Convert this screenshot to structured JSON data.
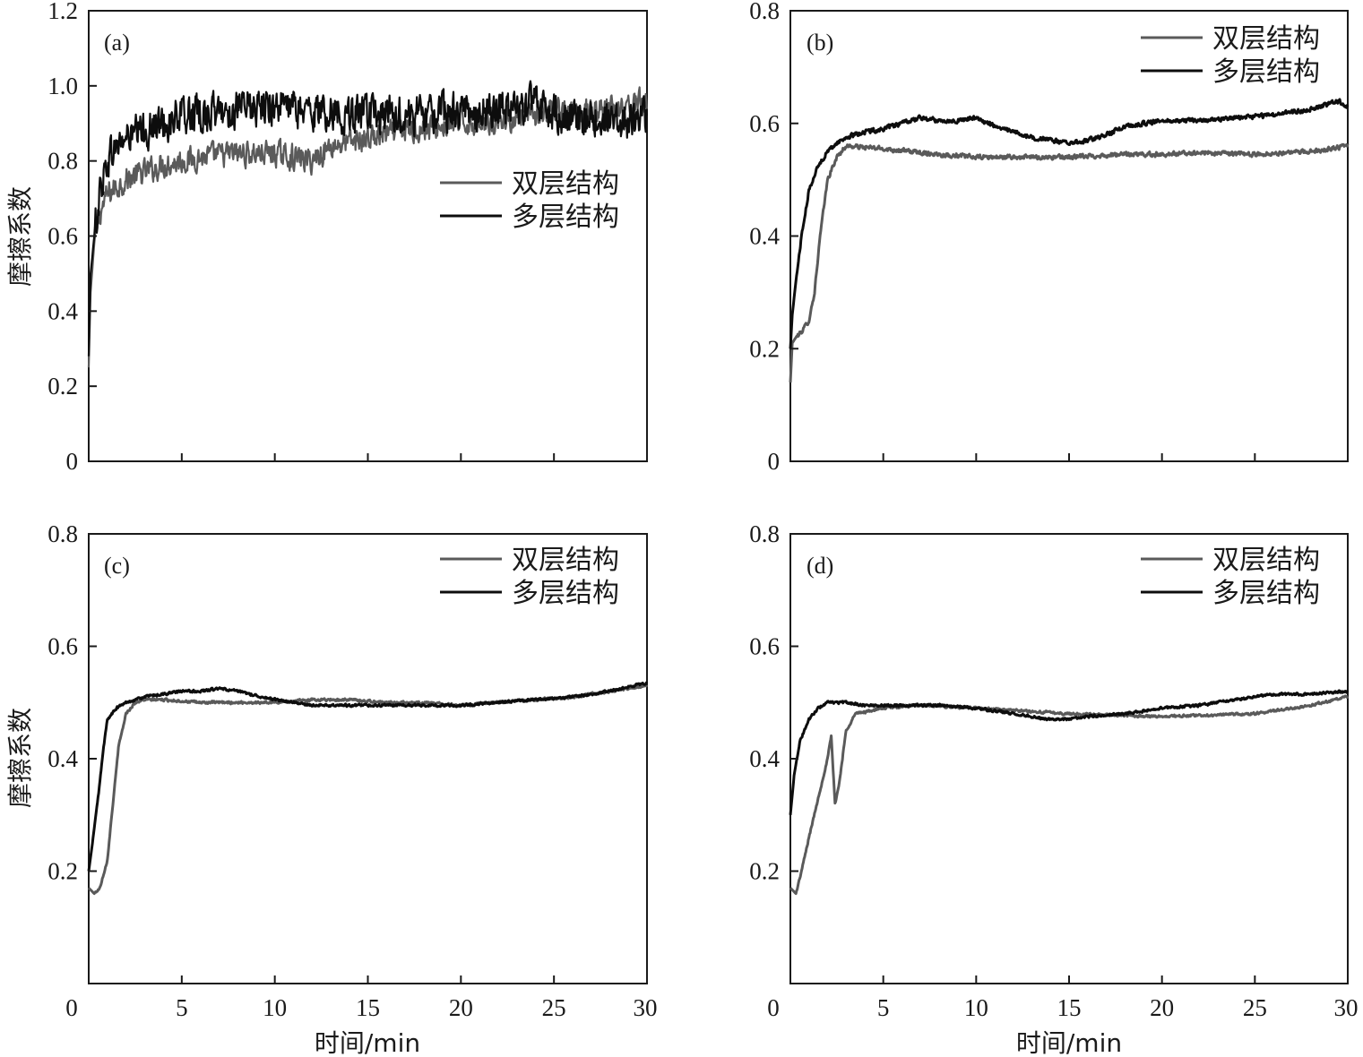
{
  "colors": {
    "双层结构": "#5a5a5a",
    "多层结构": "#0d0d0d",
    "axis": "#1a1a1a"
  },
  "chart_data": [
    {
      "type": "line",
      "panel_label": "(a)",
      "xlabel": "",
      "ylabel": "摩擦系数",
      "xlim": [
        0,
        30
      ],
      "ylim": [
        0,
        1.2
      ],
      "xticks": [
        5,
        10,
        15,
        20,
        25
      ],
      "xtick_labels": [],
      "yticks": [
        0,
        0.2,
        0.4,
        0.6,
        0.8,
        1.0,
        1.2
      ],
      "ytick_labels": [
        "0",
        "0.2",
        "0.4",
        "0.6",
        "0.8",
        "1.0",
        "1.2"
      ],
      "legend_position": "middle-right",
      "noise": {
        "双层结构": 0.03,
        "多层结构": 0.045
      },
      "series": [
        {
          "name": "双层结构",
          "x": [
            0,
            0.1,
            0.3,
            0.6,
            1,
            1.5,
            2,
            3,
            4,
            5,
            6,
            8,
            10,
            12,
            13,
            15,
            17,
            19,
            20,
            22,
            24,
            25,
            26,
            28,
            30
          ],
          "y": [
            0.25,
            0.45,
            0.58,
            0.66,
            0.71,
            0.73,
            0.75,
            0.77,
            0.79,
            0.8,
            0.81,
            0.82,
            0.82,
            0.8,
            0.84,
            0.86,
            0.88,
            0.89,
            0.9,
            0.91,
            0.92,
            0.93,
            0.93,
            0.94,
            0.96
          ]
        },
        {
          "name": "多层结构",
          "x": [
            0,
            0.1,
            0.3,
            0.6,
            1,
            1.5,
            2,
            3,
            4,
            5,
            7,
            9,
            10,
            12,
            13,
            15,
            17,
            19,
            20,
            22,
            24,
            25,
            26,
            28,
            30
          ],
          "y": [
            0.28,
            0.5,
            0.6,
            0.72,
            0.8,
            0.84,
            0.86,
            0.88,
            0.9,
            0.92,
            0.93,
            0.94,
            0.95,
            0.93,
            0.93,
            0.92,
            0.92,
            0.93,
            0.93,
            0.94,
            0.95,
            0.93,
            0.92,
            0.91,
            0.91
          ]
        }
      ]
    },
    {
      "type": "line",
      "panel_label": "(b)",
      "xlabel": "",
      "ylabel": "",
      "xlim": [
        0,
        30
      ],
      "ylim": [
        0,
        0.8
      ],
      "xticks": [
        5,
        10,
        15,
        20,
        25
      ],
      "xtick_labels": [],
      "yticks": [
        0,
        0.2,
        0.4,
        0.6,
        0.8
      ],
      "ytick_labels": [
        "0",
        "0.2",
        "0.4",
        "0.6",
        "0.8"
      ],
      "legend_position": "top-right",
      "noise": {
        "双层结构": 0.0035,
        "多层结构": 0.0035
      },
      "series": [
        {
          "name": "双层结构",
          "x": [
            0,
            0.1,
            0.3,
            0.6,
            1,
            1.3,
            1.6,
            2,
            2.5,
            3,
            5,
            8,
            10,
            12,
            15,
            18,
            20,
            22,
            25,
            28,
            30
          ],
          "y": [
            0.14,
            0.21,
            0.22,
            0.23,
            0.25,
            0.3,
            0.4,
            0.5,
            0.54,
            0.56,
            0.555,
            0.545,
            0.54,
            0.54,
            0.54,
            0.545,
            0.545,
            0.548,
            0.545,
            0.55,
            0.56
          ]
        },
        {
          "name": "多层结构",
          "x": [
            0,
            0.1,
            0.3,
            0.6,
            1,
            1.3,
            1.6,
            2,
            2.5,
            3,
            4,
            5,
            6,
            7,
            8,
            9,
            10,
            11,
            12,
            13,
            14,
            15,
            16,
            17,
            18,
            19,
            20,
            22,
            24,
            26,
            28,
            29.5,
            30
          ],
          "y": [
            0.2,
            0.26,
            0.32,
            0.4,
            0.48,
            0.51,
            0.53,
            0.55,
            0.565,
            0.575,
            0.585,
            0.59,
            0.6,
            0.61,
            0.605,
            0.605,
            0.61,
            0.595,
            0.585,
            0.575,
            0.57,
            0.565,
            0.57,
            0.58,
            0.595,
            0.6,
            0.605,
            0.605,
            0.61,
            0.615,
            0.625,
            0.64,
            0.63
          ]
        }
      ]
    },
    {
      "type": "line",
      "panel_label": "(c)",
      "xlabel": "时间/min",
      "ylabel": "摩擦系数",
      "xlim": [
        0,
        30
      ],
      "ylim": [
        0,
        0.8
      ],
      "xticks": [
        0,
        5,
        10,
        15,
        20,
        25,
        30
      ],
      "xtick_labels": [
        "0",
        "5",
        "10",
        "15",
        "20",
        "25",
        "30"
      ],
      "yticks": [
        0.2,
        0.4,
        0.6,
        0.8
      ],
      "ytick_labels": [
        "0.2",
        "0.4",
        "0.6",
        "0.8"
      ],
      "legend_position": "top-right",
      "noise": {
        "双层结构": 0.002,
        "多层结构": 0.002
      },
      "series": [
        {
          "name": "双层结构",
          "x": [
            0,
            0.3,
            0.6,
            1,
            1.3,
            1.6,
            2,
            2.5,
            3,
            4,
            6,
            8,
            10,
            12,
            14,
            16,
            18,
            20,
            22,
            24,
            26,
            28,
            30
          ],
          "y": [
            0.17,
            0.16,
            0.17,
            0.22,
            0.32,
            0.42,
            0.48,
            0.5,
            0.505,
            0.505,
            0.5,
            0.5,
            0.5,
            0.505,
            0.505,
            0.5,
            0.5,
            0.495,
            0.5,
            0.505,
            0.51,
            0.52,
            0.53
          ]
        },
        {
          "name": "多层结构",
          "x": [
            0,
            0.2,
            0.5,
            0.8,
            1,
            1.5,
            2,
            3,
            4,
            5,
            6,
            7,
            8,
            10,
            12,
            14,
            16,
            18,
            20,
            22,
            24,
            26,
            28,
            30
          ],
          "y": [
            0.2,
            0.25,
            0.33,
            0.42,
            0.47,
            0.49,
            0.5,
            0.51,
            0.515,
            0.52,
            0.52,
            0.525,
            0.52,
            0.505,
            0.495,
            0.495,
            0.495,
            0.495,
            0.495,
            0.5,
            0.505,
            0.51,
            0.52,
            0.535
          ]
        }
      ]
    },
    {
      "type": "line",
      "panel_label": "(d)",
      "xlabel": "时间/min",
      "ylabel": "",
      "xlim": [
        0,
        30
      ],
      "ylim": [
        0,
        0.8
      ],
      "xticks": [
        0,
        5,
        10,
        15,
        20,
        25,
        30
      ],
      "xtick_labels": [
        "0",
        "5",
        "10",
        "15",
        "20",
        "25",
        "30"
      ],
      "yticks": [
        0.2,
        0.4,
        0.6,
        0.8
      ],
      "ytick_labels": [
        "0.2",
        "0.4",
        "0.6",
        "0.8"
      ],
      "legend_position": "top-right",
      "noise": {
        "双层结构": 0.002,
        "多层结构": 0.002
      },
      "series": [
        {
          "name": "双层结构",
          "x": [
            0,
            0.3,
            0.6,
            1,
            1.5,
            2,
            2.2,
            2.4,
            2.6,
            3,
            3.5,
            5,
            7,
            10,
            15,
            20,
            25,
            28,
            30
          ],
          "y": [
            0.17,
            0.16,
            0.2,
            0.26,
            0.33,
            0.4,
            0.44,
            0.32,
            0.35,
            0.45,
            0.48,
            0.49,
            0.495,
            0.49,
            0.48,
            0.475,
            0.48,
            0.495,
            0.51
          ]
        },
        {
          "name": "多层结构",
          "x": [
            0,
            0.2,
            0.5,
            1,
            1.5,
            2,
            3,
            4,
            6,
            8,
            10,
            12,
            14,
            15,
            16,
            18,
            20,
            22,
            24,
            26,
            28,
            30
          ],
          "y": [
            0.3,
            0.37,
            0.43,
            0.47,
            0.49,
            0.5,
            0.5,
            0.495,
            0.495,
            0.495,
            0.49,
            0.48,
            0.47,
            0.47,
            0.475,
            0.48,
            0.49,
            0.495,
            0.505,
            0.515,
            0.515,
            0.52
          ]
        }
      ]
    }
  ]
}
